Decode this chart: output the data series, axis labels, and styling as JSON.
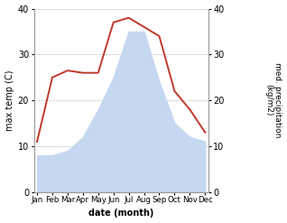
{
  "months": [
    "Jan",
    "Feb",
    "Mar",
    "Apr",
    "May",
    "Jun",
    "Jul",
    "Aug",
    "Sep",
    "Oct",
    "Nov",
    "Dec"
  ],
  "temperature": [
    11,
    25,
    26.5,
    26,
    26,
    37,
    38,
    36,
    34,
    22,
    18,
    13
  ],
  "precipitation": [
    8,
    8,
    9,
    12,
    18,
    25,
    35,
    35,
    24,
    15,
    12,
    11
  ],
  "temp_color": "#c0392b",
  "precip_color": "#c5d8f0",
  "ylim": [
    0,
    40
  ],
  "xlabel": "date (month)",
  "ylabel_left": "max temp (C)",
  "ylabel_right": "med. precipitation\n(kg/m2)",
  "bg_color": "#ffffff",
  "grid_color": "#d0d0d0"
}
